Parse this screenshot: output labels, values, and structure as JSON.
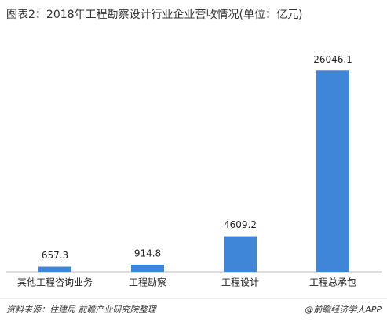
{
  "chart_data": {
    "type": "bar",
    "title": "图表2：2018年工程勘察设计行业企业营收情况(单位：亿元)",
    "categories": [
      "其他工程咨询业务",
      "工程勘察",
      "工程设计",
      "工程总承包"
    ],
    "values": [
      657.3,
      914.8,
      4609.2,
      26046.1
    ],
    "color": "#3f86d8",
    "ylim": [
      0,
      28000
    ]
  },
  "footer": {
    "source": "资料来源：住建局 前瞻产业研究院整理",
    "brand": "@前瞻经济学人APP"
  }
}
